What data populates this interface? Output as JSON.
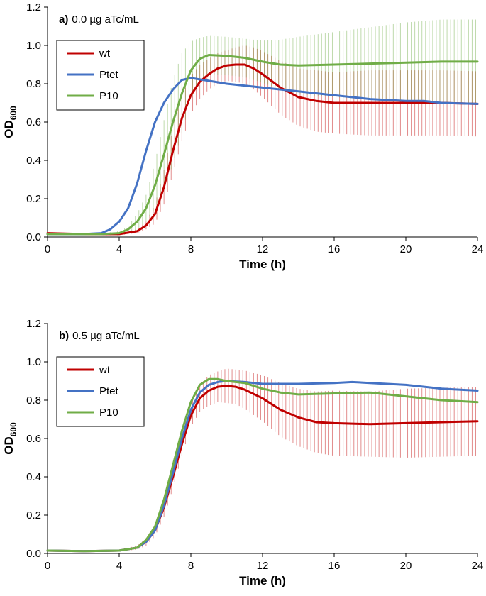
{
  "chart_data": [
    {
      "type": "line",
      "panel_label": "a)",
      "title": "0.0 µg aTc/mL",
      "xlabel": "Time (h)",
      "ylabel_main": "OD",
      "ylabel_sub": "600",
      "xlim": [
        0,
        24
      ],
      "ylim": [
        0,
        1.2
      ],
      "xticks": [
        "0",
        "4",
        "8",
        "12",
        "16",
        "20",
        "24"
      ],
      "yticks": [
        "0.0",
        "0.2",
        "0.4",
        "0.6",
        "0.8",
        "1.0",
        "1.2"
      ],
      "legend_position": "top-left",
      "series": [
        {
          "name": "wt",
          "color": "#c00000",
          "x": [
            0,
            2,
            3,
            4,
            5,
            5.5,
            6,
            6.5,
            7,
            7.5,
            8,
            8.5,
            9,
            9.5,
            10,
            10.5,
            11,
            11.5,
            12,
            13,
            14,
            15,
            16,
            18,
            20,
            22,
            24
          ],
          "y": [
            0.02,
            0.015,
            0.015,
            0.015,
            0.03,
            0.06,
            0.12,
            0.26,
            0.45,
            0.62,
            0.74,
            0.81,
            0.85,
            0.88,
            0.895,
            0.9,
            0.9,
            0.88,
            0.85,
            0.78,
            0.73,
            0.71,
            0.7,
            0.7,
            0.7,
            0.7,
            0.695
          ],
          "err": [
            0.005,
            0.005,
            0.005,
            0.005,
            0.01,
            0.02,
            0.05,
            0.09,
            0.12,
            0.12,
            0.1,
            0.09,
            0.08,
            0.08,
            0.08,
            0.09,
            0.1,
            0.11,
            0.12,
            0.14,
            0.15,
            0.16,
            0.16,
            0.17,
            0.17,
            0.17,
            0.17
          ]
        },
        {
          "name": "Ptet",
          "color": "#4472c4",
          "x": [
            0,
            2,
            3,
            3.5,
            4,
            4.5,
            5,
            5.5,
            6,
            6.5,
            7,
            7.5,
            8,
            9,
            10,
            12,
            14,
            16,
            18,
            20,
            21,
            22,
            24
          ],
          "y": [
            0.015,
            0.015,
            0.02,
            0.04,
            0.08,
            0.15,
            0.28,
            0.45,
            0.6,
            0.7,
            0.77,
            0.82,
            0.83,
            0.815,
            0.8,
            0.78,
            0.76,
            0.74,
            0.72,
            0.71,
            0.71,
            0.7,
            0.695
          ],
          "err": []
        },
        {
          "name": "P10",
          "color": "#70ad47",
          "x": [
            0,
            2,
            3,
            4,
            4.5,
            5,
            5.5,
            6,
            6.5,
            7,
            7.5,
            8,
            8.5,
            9,
            10,
            11,
            12,
            13,
            14,
            16,
            18,
            20,
            22,
            24
          ],
          "y": [
            0.015,
            0.015,
            0.015,
            0.02,
            0.04,
            0.08,
            0.15,
            0.27,
            0.43,
            0.6,
            0.75,
            0.87,
            0.93,
            0.95,
            0.945,
            0.935,
            0.915,
            0.9,
            0.895,
            0.9,
            0.905,
            0.91,
            0.915,
            0.915
          ],
          "err": [
            0.005,
            0.005,
            0.005,
            0.01,
            0.02,
            0.04,
            0.07,
            0.12,
            0.18,
            0.22,
            0.21,
            0.15,
            0.11,
            0.1,
            0.1,
            0.1,
            0.11,
            0.13,
            0.15,
            0.17,
            0.19,
            0.21,
            0.22,
            0.22
          ]
        }
      ]
    },
    {
      "type": "line",
      "panel_label": "b)",
      "title": "0.5 µg aTc/mL",
      "xlabel": "Time (h)",
      "ylabel_main": "OD",
      "ylabel_sub": "600",
      "xlim": [
        0,
        24
      ],
      "ylim": [
        0,
        1.2
      ],
      "xticks": [
        "0",
        "4",
        "8",
        "12",
        "16",
        "20",
        "24"
      ],
      "yticks": [
        "0.0",
        "0.2",
        "0.4",
        "0.6",
        "0.8",
        "1.0",
        "1.2"
      ],
      "legend_position": "top-left",
      "series": [
        {
          "name": "wt",
          "color": "#c00000",
          "x": [
            0,
            2,
            4,
            5,
            5.5,
            6,
            6.5,
            7,
            7.5,
            8,
            8.5,
            9,
            9.5,
            10,
            10.5,
            11,
            12,
            13,
            14,
            15,
            16,
            18,
            20,
            22,
            24
          ],
          "y": [
            0.015,
            0.012,
            0.015,
            0.03,
            0.06,
            0.12,
            0.24,
            0.4,
            0.57,
            0.72,
            0.81,
            0.85,
            0.87,
            0.875,
            0.87,
            0.855,
            0.81,
            0.75,
            0.71,
            0.685,
            0.68,
            0.675,
            0.68,
            0.685,
            0.69
          ],
          "err": [
            0.005,
            0.005,
            0.005,
            0.01,
            0.02,
            0.03,
            0.05,
            0.06,
            0.06,
            0.06,
            0.07,
            0.08,
            0.08,
            0.09,
            0.09,
            0.1,
            0.12,
            0.14,
            0.15,
            0.16,
            0.17,
            0.17,
            0.18,
            0.18,
            0.18
          ]
        },
        {
          "name": "Ptet",
          "color": "#4472c4",
          "x": [
            0,
            2,
            4,
            5,
            5.5,
            6,
            6.5,
            7,
            7.5,
            8,
            8.5,
            9,
            9.5,
            10,
            11,
            12,
            14,
            16,
            17,
            18,
            20,
            22,
            24
          ],
          "y": [
            0.015,
            0.012,
            0.015,
            0.03,
            0.06,
            0.12,
            0.25,
            0.42,
            0.6,
            0.75,
            0.84,
            0.88,
            0.895,
            0.9,
            0.895,
            0.885,
            0.885,
            0.89,
            0.895,
            0.89,
            0.88,
            0.86,
            0.85
          ],
          "err": []
        },
        {
          "name": "P10",
          "color": "#70ad47",
          "x": [
            0,
            2,
            4,
            5,
            5.5,
            6,
            6.5,
            7,
            7.5,
            8,
            8.5,
            9,
            9.5,
            10,
            11,
            12,
            13,
            14,
            16,
            18,
            20,
            22,
            24
          ],
          "y": [
            0.015,
            0.012,
            0.015,
            0.03,
            0.07,
            0.14,
            0.28,
            0.46,
            0.64,
            0.79,
            0.88,
            0.91,
            0.91,
            0.9,
            0.89,
            0.86,
            0.84,
            0.83,
            0.835,
            0.84,
            0.82,
            0.8,
            0.79
          ],
          "err": []
        }
      ]
    }
  ]
}
